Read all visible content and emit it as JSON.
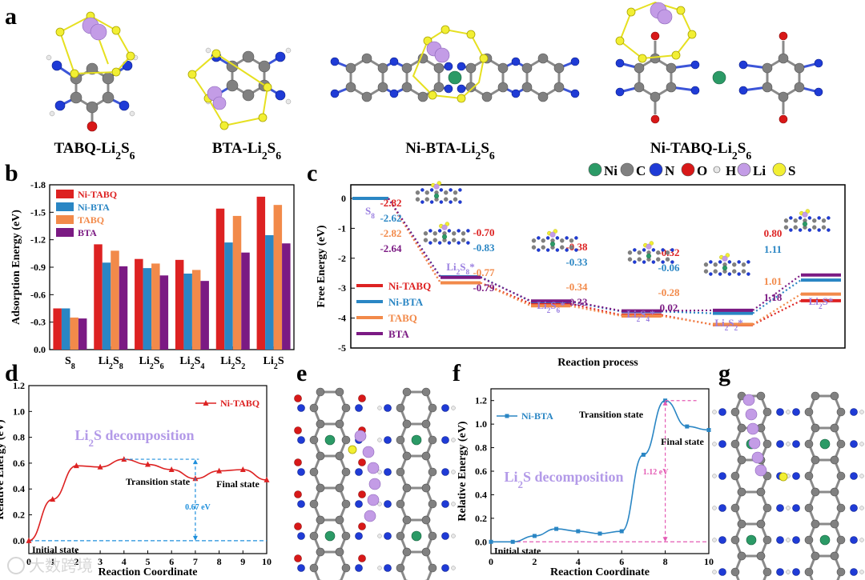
{
  "panel_labels": {
    "a": "a",
    "b": "b",
    "c": "c",
    "d": "d",
    "e": "e",
    "f": "f",
    "g": "g"
  },
  "molecules": [
    "TABQ-Li2S6",
    "BTA-Li2S6",
    "Ni-BTA-Li2S6",
    "Ni-TABQ-Li2S6"
  ],
  "atom_legend": [
    {
      "symbol": "Ni",
      "color": "#2b9a66"
    },
    {
      "symbol": "C",
      "color": "#808080"
    },
    {
      "symbol": "N",
      "color": "#1f3bd6"
    },
    {
      "symbol": "O",
      "color": "#d81818"
    },
    {
      "symbol": "H",
      "color": "#e8e8e8"
    },
    {
      "symbol": "Li",
      "color": "#c39ce6"
    },
    {
      "symbol": "S",
      "color": "#f2ef33"
    }
  ],
  "watermark": "大数跨境",
  "chart_data": [
    {
      "panel": "b",
      "type": "bar",
      "title": "",
      "xlabel": "",
      "ylabel": "Adsorption Energy (eV)",
      "ylim": [
        0,
        -1.8
      ],
      "yticks": [
        "0.0",
        "-0.3",
        "-0.6",
        "-0.9",
        "-1.2",
        "-1.5",
        "-1.8"
      ],
      "categories": [
        "S8",
        "Li2S8",
        "Li2S6",
        "Li2S4",
        "Li2S2",
        "Li2S"
      ],
      "legend_position": "top-left",
      "series": [
        {
          "name": "Ni-TABQ",
          "color": "#dd2222",
          "values": [
            -0.45,
            -1.15,
            -0.99,
            -0.98,
            -1.54,
            -1.67
          ]
        },
        {
          "name": "Ni-BTA",
          "color": "#2a86c4",
          "values": [
            -0.45,
            -0.95,
            -0.89,
            -0.83,
            -1.17,
            -1.25
          ]
        },
        {
          "name": "TABQ",
          "color": "#f28a4a",
          "values": [
            -0.35,
            -1.08,
            -0.94,
            -0.87,
            -1.46,
            -1.58
          ]
        },
        {
          "name": "BTA",
          "color": "#7b1a83",
          "values": [
            -0.34,
            -0.91,
            -0.81,
            -0.75,
            -1.06,
            -1.16
          ]
        }
      ]
    },
    {
      "panel": "c",
      "type": "line",
      "title": "",
      "xlabel": "Reaction process",
      "ylabel": "Free Energy (eV)",
      "ylim": [
        -5,
        0
      ],
      "yticks": [
        "0",
        "-1",
        "-2",
        "-3",
        "-4",
        "-5"
      ],
      "steps": [
        "S8",
        "Li2S8*",
        "Li2S6*",
        "Li2S4*",
        "Li2S2*",
        "Li2S*"
      ],
      "legend_position": "bottom-left",
      "series": [
        {
          "name": "Ni-TABQ",
          "color": "#dd2222",
          "levels": [
            0,
            -2.82,
            -3.52,
            -3.9,
            -4.22,
            -3.42
          ]
        },
        {
          "name": "Ni-BTA",
          "color": "#2a86c4",
          "levels": [
            0,
            -2.62,
            -3.45,
            -3.78,
            -3.84,
            -2.73
          ]
        },
        {
          "name": "TABQ",
          "color": "#f28a4a",
          "levels": [
            0,
            -2.82,
            -3.59,
            -3.93,
            -4.21,
            -3.2
          ]
        },
        {
          "name": "BTA",
          "color": "#7b1a83",
          "levels": [
            0,
            -2.64,
            -3.43,
            -3.76,
            -3.74,
            -2.56
          ]
        }
      ],
      "step_labels": [
        {
          "values": [
            "-2.82",
            "-2.62",
            "-2.82",
            "-2.64"
          ]
        },
        {
          "values": [
            "-0.70",
            "-0.83",
            "-0.77",
            "-0.79"
          ]
        },
        {
          "values": [
            "-0.38",
            "-0.33",
            "-0.34",
            "-0.33"
          ]
        },
        {
          "values": [
            "-0.32",
            "-0.06",
            "-0.28",
            "0.02"
          ]
        },
        {
          "values": [
            "0.80",
            "1.11",
            "1.01",
            "1.18"
          ]
        }
      ]
    },
    {
      "panel": "d",
      "type": "line",
      "title": "Li2S decomposition",
      "xlabel": "Reaction Coordinate",
      "ylabel": "Relative Energy (eV)",
      "xlim": [
        0,
        10
      ],
      "ylim": [
        -0.1,
        1.2
      ],
      "xticks": [
        "0",
        "1",
        "2",
        "3",
        "4",
        "5",
        "6",
        "7",
        "8",
        "9",
        "10"
      ],
      "yticks": [
        "0.0",
        "0.2",
        "0.4",
        "0.6",
        "0.8",
        "1.0",
        "1.2"
      ],
      "series": [
        {
          "name": "Ni-TABQ",
          "color": "#dd2222",
          "x": [
            0,
            1,
            2,
            3,
            4,
            5,
            6,
            7,
            8,
            9,
            10
          ],
          "y": [
            0,
            0.32,
            0.58,
            0.57,
            0.63,
            0.59,
            0.55,
            0.48,
            0.54,
            0.55,
            0.47
          ]
        }
      ],
      "annotations": {
        "initial": "Initial state",
        "transition": "Transition state",
        "final": "Final state",
        "barrier": "0.67 eV"
      }
    },
    {
      "panel": "f",
      "type": "line",
      "title": "Li2S decomposition",
      "xlabel": "Reaction Coordinate",
      "ylabel": "Relative Energy (eV)",
      "xlim": [
        0,
        10
      ],
      "ylim": [
        -0.1,
        1.3
      ],
      "xticks": [
        "0",
        "2",
        "4",
        "6",
        "8",
        "10"
      ],
      "yticks": [
        "0.0",
        "0.2",
        "0.4",
        "0.6",
        "0.8",
        "1.0",
        "1.2"
      ],
      "series": [
        {
          "name": "Ni-BTA",
          "color": "#2a86c4",
          "x": [
            0,
            1,
            2,
            3,
            4,
            5,
            6,
            7,
            8,
            9,
            10
          ],
          "y": [
            0,
            0.0,
            0.05,
            0.11,
            0.09,
            0.07,
            0.09,
            0.74,
            1.2,
            0.98,
            0.95
          ]
        }
      ],
      "annotations": {
        "initial": "Initial state",
        "transition": "Transition state",
        "final": "Final state",
        "barrier": "1.12 eV"
      }
    }
  ]
}
